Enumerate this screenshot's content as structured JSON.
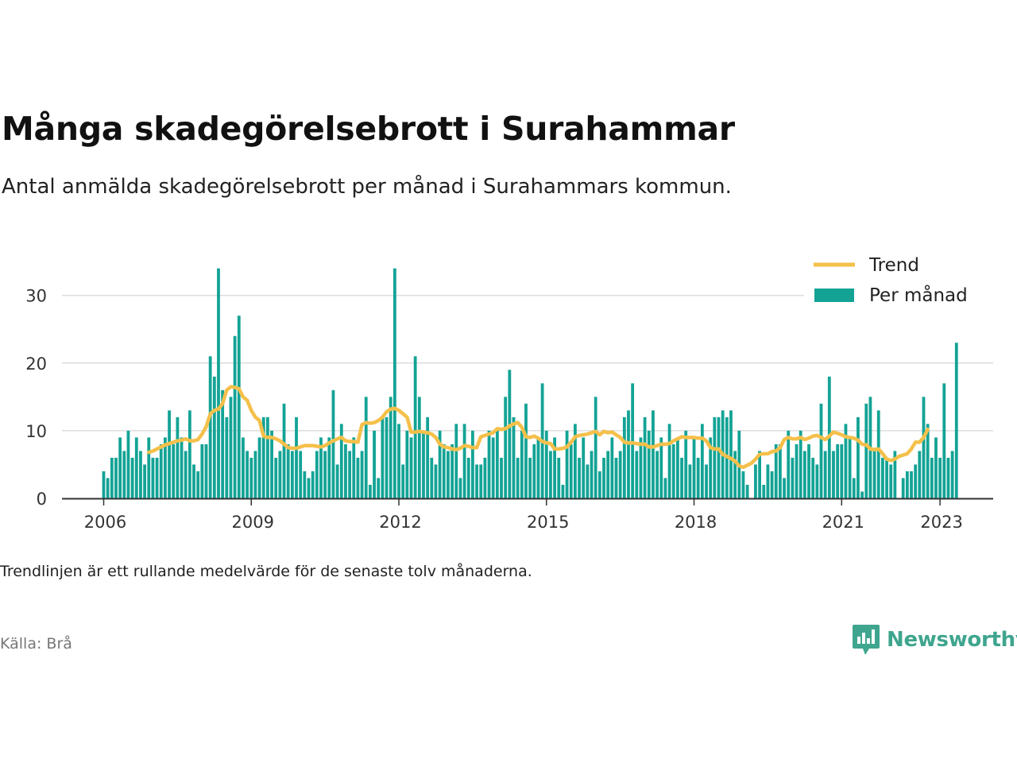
{
  "title": "Många skadegörelsebrott i Surahammar",
  "subtitle": "Antal anmälda skadegörelsebrott per månad i Surahammars kommun.",
  "note": "Trendlinjen är ett rullande medelvärde för de senaste tolv månaderna.",
  "source": "Källa: Brå",
  "brand": {
    "name": "Newsworthy",
    "icon": "newsworthy-logo-icon"
  },
  "colors": {
    "bars": "#13a395",
    "trend": "#f5c04a",
    "grid": "#dddddd",
    "axis": "#333333"
  },
  "chart_data": {
    "type": "bar",
    "x_start": "2006-01",
    "x_ticks": [
      "2006",
      "2009",
      "2012",
      "2015",
      "2018",
      "2021",
      "2023"
    ],
    "y_ticks": [
      "0",
      "10",
      "20",
      "30"
    ],
    "ylim": [
      0,
      36
    ],
    "grid": true,
    "legend_position": "top-right",
    "legend": {
      "trend": "Trend",
      "bars": "Per månad"
    },
    "series": [
      {
        "name": "Per månad",
        "type": "bar",
        "values": [
          4,
          3,
          6,
          6,
          9,
          7,
          10,
          6,
          9,
          7,
          5,
          9,
          6,
          6,
          8,
          9,
          13,
          8,
          12,
          9,
          7,
          13,
          5,
          4,
          8,
          8,
          21,
          18,
          34,
          16,
          12,
          15,
          24,
          27,
          9,
          7,
          6,
          7,
          9,
          12,
          12,
          10,
          6,
          7,
          14,
          8,
          7,
          12,
          7,
          4,
          3,
          4,
          7,
          9,
          7,
          9,
          16,
          5,
          11,
          8,
          7,
          9,
          6,
          7,
          15,
          2,
          10,
          3,
          12,
          12,
          15,
          34,
          11,
          5,
          10,
          9,
          21,
          15,
          10,
          12,
          6,
          5,
          10,
          8,
          7,
          8,
          11,
          3,
          11,
          6,
          10,
          5,
          5,
          6,
          10,
          9,
          10,
          6,
          15,
          19,
          12,
          6,
          10,
          14,
          6,
          8,
          9,
          17,
          10,
          7,
          9,
          6,
          2,
          10,
          8,
          11,
          6,
          9,
          5,
          7,
          15,
          4,
          6,
          7,
          9,
          6,
          7,
          12,
          13,
          17,
          7,
          9,
          12,
          10,
          13,
          7,
          9,
          3,
          11,
          8,
          9,
          6,
          10,
          5,
          9,
          6,
          11,
          5,
          9,
          12,
          12,
          13,
          12,
          13,
          7,
          10,
          4,
          2,
          0,
          5,
          7,
          2,
          5,
          4,
          8,
          8,
          3,
          10,
          6,
          8,
          10,
          7,
          8,
          6,
          5,
          14,
          7,
          18,
          7,
          8,
          8,
          11,
          9,
          3,
          12,
          1,
          14,
          15,
          7,
          13,
          6,
          6,
          5,
          7,
          0,
          3,
          4,
          4,
          5,
          7,
          15,
          11,
          6,
          9,
          6,
          17,
          6,
          7,
          23
        ]
      },
      {
        "name": "Trend",
        "type": "line",
        "start_index": 11,
        "values": [
          6.8,
          7.0,
          7.3,
          7.6,
          7.9,
          8.1,
          8.3,
          8.5,
          8.6,
          8.8,
          8.5,
          8.5,
          8.7,
          9.5,
          10.6,
          12.5,
          13.0,
          13.2,
          14.0,
          16.0,
          16.5,
          16.4,
          16.2,
          15.0,
          14.5,
          13.0,
          12.0,
          11.5,
          9.2,
          9.0,
          9.0,
          8.8,
          8.5,
          8.0,
          7.5,
          7.4,
          7.4,
          7.6,
          7.8,
          7.8,
          7.8,
          7.7,
          7.6,
          7.8,
          8.2,
          8.5,
          8.8,
          9.0,
          8.5,
          8.4,
          8.4,
          8.3,
          10.9,
          11.2,
          11.1,
          11.2,
          11.5,
          12.0,
          12.8,
          13.2,
          13.3,
          13.0,
          12.5,
          12.0,
          9.8,
          9.8,
          9.9,
          9.8,
          9.7,
          9.5,
          9.0,
          8.0,
          7.6,
          7.5,
          7.3,
          7.2,
          7.4,
          7.8,
          7.7,
          7.5,
          7.5,
          9.1,
          9.3,
          9.5,
          9.7,
          10.3,
          10.2,
          10.3,
          10.7,
          11.0,
          11.2,
          10.5,
          9.1,
          9.0,
          9.2,
          8.9,
          8.4,
          8.2,
          8.1,
          7.3,
          7.3,
          7.4,
          7.6,
          8.3,
          9.1,
          9.3,
          9.4,
          9.5,
          9.7,
          9.9,
          9.4,
          9.9,
          9.7,
          9.8,
          9.4,
          9.0,
          8.3,
          8.2,
          8.2,
          8.1,
          8.0,
          8.0,
          7.6,
          7.6,
          7.8,
          8.0,
          8.0,
          8.1,
          8.5,
          8.8,
          9.1,
          9.0,
          9.0,
          9.0,
          8.9,
          8.9,
          8.5,
          7.5,
          7.3,
          7.3,
          6.5,
          6.2,
          5.9,
          5.5,
          4.8,
          4.6,
          4.9,
          5.2,
          5.8,
          6.5,
          6.6,
          6.6,
          6.9,
          7.0,
          7.5,
          8.7,
          9.0,
          8.8,
          8.8,
          9.0,
          8.7,
          8.9,
          9.2,
          9.3,
          9.0,
          8.7,
          9.2,
          9.8,
          9.6,
          9.4,
          9.1,
          9.0,
          8.9,
          8.6,
          8.0,
          7.9,
          7.3,
          7.2,
          7.3,
          6.6,
          5.8,
          5.6,
          5.8,
          6.2,
          6.4,
          6.6,
          7.3,
          8.3,
          8.3,
          9.0,
          10.2
        ]
      }
    ]
  }
}
